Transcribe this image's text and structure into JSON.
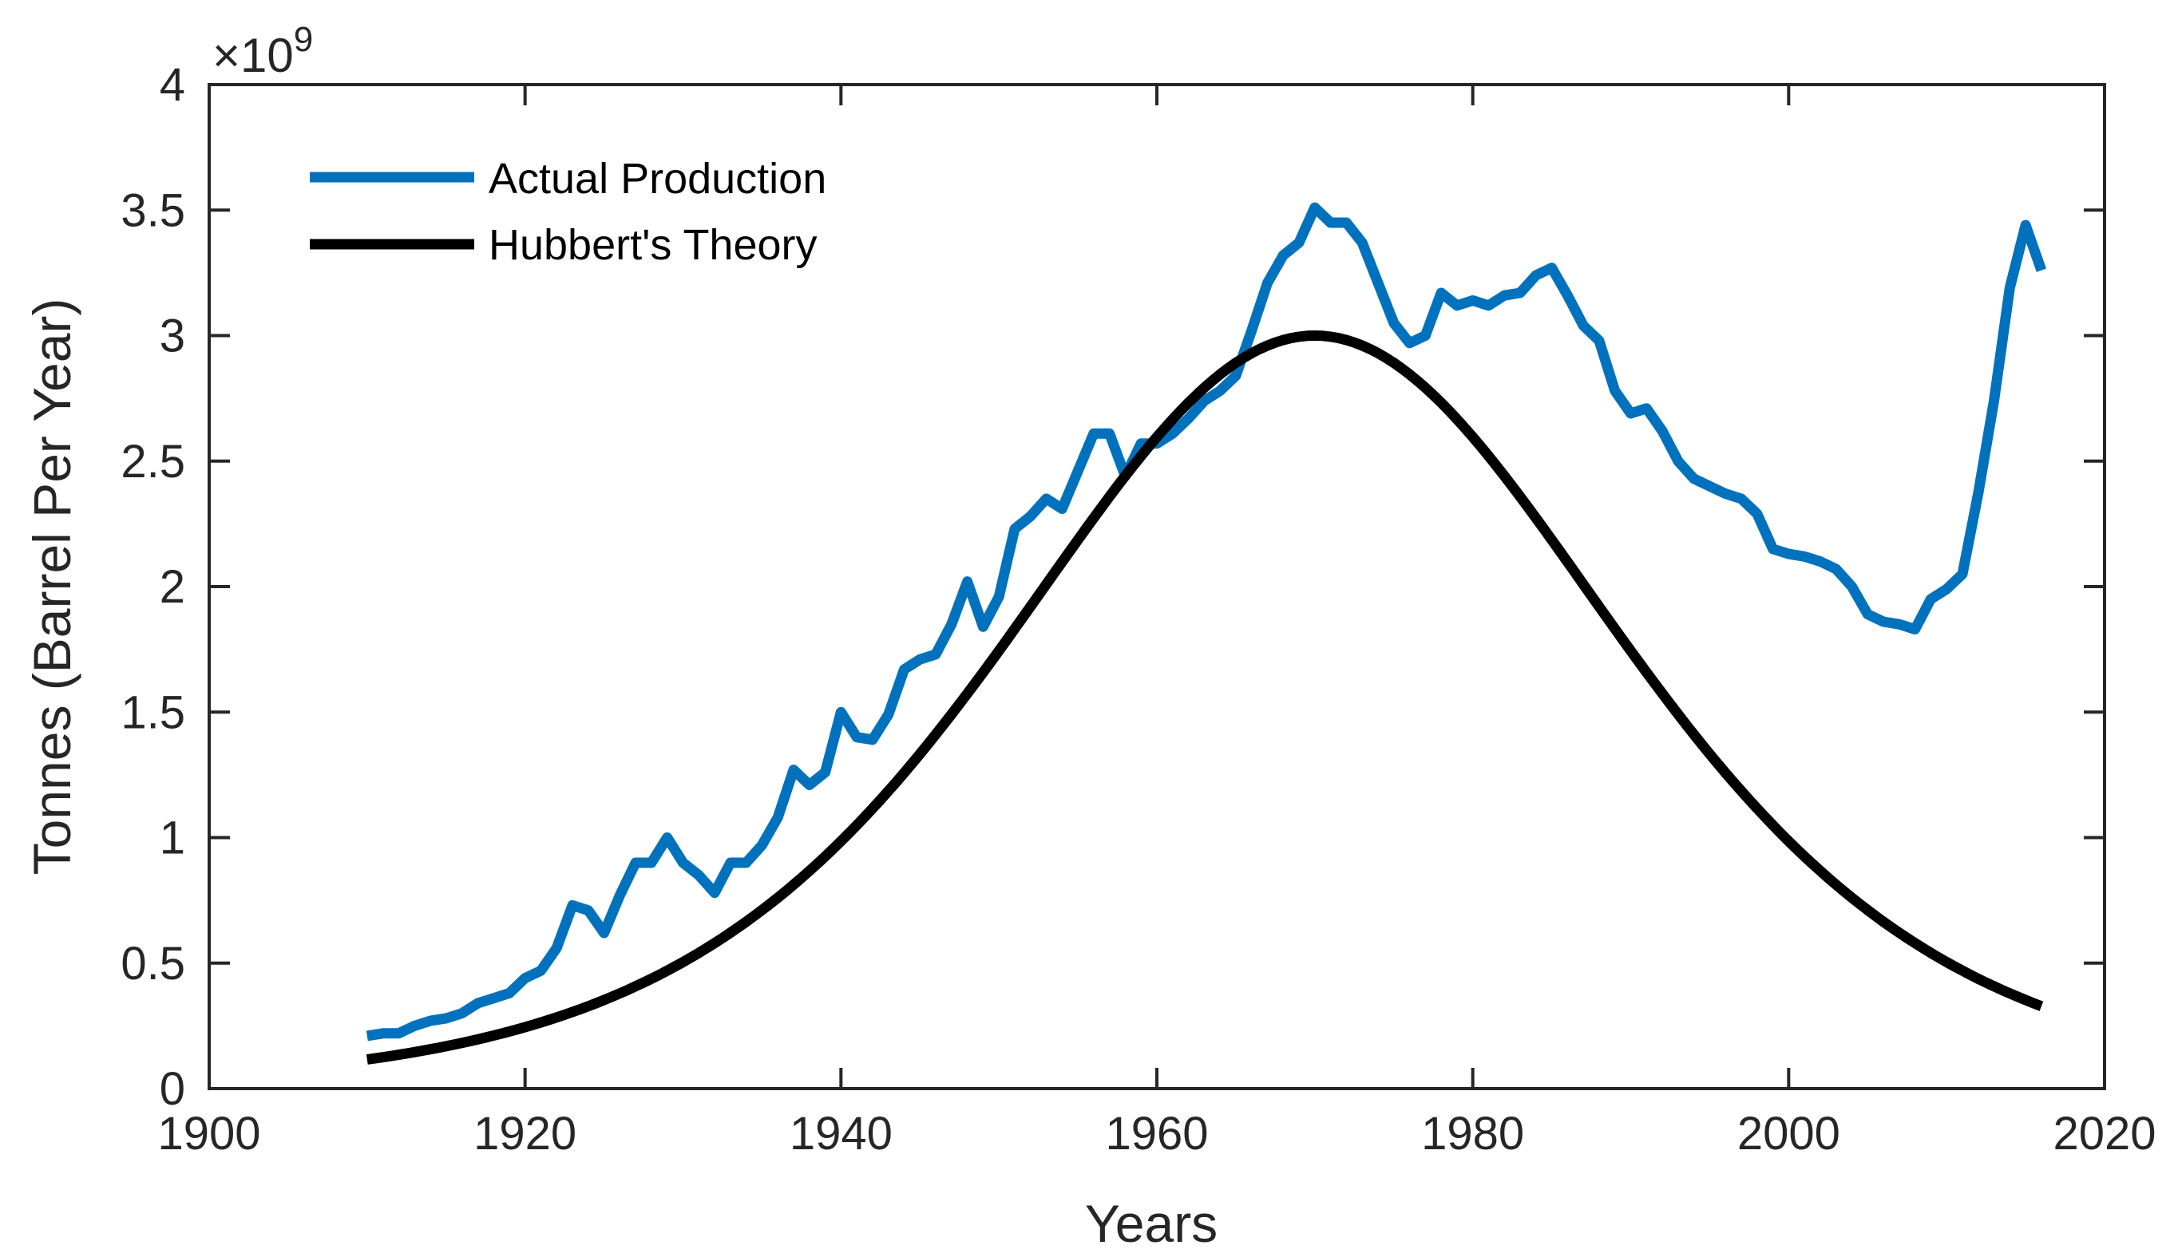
{
  "chart_data": {
    "type": "line",
    "title": "",
    "xlabel": "Years",
    "ylabel": "Tonnes (Barrel Per Year)",
    "xlim": [
      1900,
      2020
    ],
    "ylim": [
      0,
      4
    ],
    "xticks": [
      1900,
      1920,
      1940,
      1960,
      1980,
      2000,
      2020
    ],
    "yticks": [
      0,
      0.5,
      1,
      1.5,
      2,
      2.5,
      3,
      3.5,
      4
    ],
    "ytick_labels": [
      "0",
      "0.5",
      "1",
      "1.5",
      "2",
      "2.5",
      "3",
      "3.5",
      "4"
    ],
    "y_multiplier": {
      "prefix": "×10",
      "exponent": "9"
    },
    "grid": false,
    "legend_position": "top-left",
    "series": [
      {
        "name": "Actual Production",
        "color": "#0072BD",
        "x": [
          1910,
          1911,
          1912,
          1913,
          1914,
          1915,
          1916,
          1917,
          1918,
          1919,
          1920,
          1921,
          1922,
          1923,
          1924,
          1925,
          1926,
          1927,
          1928,
          1929,
          1930,
          1931,
          1932,
          1933,
          1934,
          1935,
          1936,
          1937,
          1938,
          1939,
          1940,
          1941,
          1942,
          1943,
          1944,
          1945,
          1946,
          1947,
          1948,
          1949,
          1950,
          1951,
          1952,
          1953,
          1954,
          1955,
          1956,
          1957,
          1958,
          1959,
          1960,
          1961,
          1962,
          1963,
          1964,
          1965,
          1966,
          1967,
          1968,
          1969,
          1970,
          1971,
          1972,
          1973,
          1974,
          1975,
          1976,
          1977,
          1978,
          1979,
          1980,
          1981,
          1982,
          1983,
          1984,
          1985,
          1986,
          1987,
          1988,
          1989,
          1990,
          1991,
          1992,
          1993,
          1994,
          1995,
          1996,
          1997,
          1998,
          1999,
          2000,
          2001,
          2002,
          2003,
          2004,
          2005,
          2006,
          2007,
          2008,
          2009,
          2010,
          2011,
          2012,
          2013,
          2014,
          2015,
          2016
        ],
        "values": [
          0.21,
          0.22,
          0.22,
          0.25,
          0.27,
          0.28,
          0.3,
          0.34,
          0.36,
          0.38,
          0.44,
          0.47,
          0.56,
          0.73,
          0.71,
          0.62,
          0.77,
          0.9,
          0.9,
          1.0,
          0.9,
          0.85,
          0.78,
          0.9,
          0.9,
          0.97,
          1.08,
          1.27,
          1.21,
          1.26,
          1.5,
          1.4,
          1.39,
          1.49,
          1.67,
          1.71,
          1.73,
          1.85,
          2.02,
          1.84,
          1.96,
          2.23,
          2.28,
          2.35,
          2.31,
          2.46,
          2.61,
          2.61,
          2.44,
          2.57,
          2.57,
          2.61,
          2.67,
          2.74,
          2.78,
          2.84,
          3.02,
          3.21,
          3.32,
          3.37,
          3.51,
          3.45,
          3.45,
          3.37,
          3.21,
          3.05,
          2.97,
          3.0,
          3.17,
          3.12,
          3.14,
          3.12,
          3.16,
          3.17,
          3.24,
          3.27,
          3.16,
          3.04,
          2.98,
          2.78,
          2.69,
          2.71,
          2.62,
          2.5,
          2.43,
          2.4,
          2.37,
          2.35,
          2.29,
          2.15,
          2.13,
          2.12,
          2.1,
          2.07,
          2.0,
          1.89,
          1.86,
          1.85,
          1.83,
          1.95,
          1.99,
          2.05,
          2.37,
          2.74,
          3.19,
          3.44,
          3.26
        ]
      },
      {
        "name": "Hubbert's Theory",
        "color": "#000000",
        "model": {
          "peak_year": 1970,
          "peak_value": 3.0,
          "k": 0.077
        },
        "x": [
          1910,
          1915,
          1920,
          1925,
          1930,
          1935,
          1940,
          1945,
          1950,
          1955,
          1960,
          1965,
          1970,
          1975,
          1980,
          1985,
          1990,
          1995,
          2000,
          2005,
          2010,
          2015,
          2016
        ],
        "values": [
          0.19,
          0.28,
          0.39,
          0.53,
          0.71,
          0.94,
          1.23,
          1.57,
          1.94,
          2.33,
          2.66,
          2.91,
          3.0,
          2.91,
          2.66,
          2.31,
          1.93,
          1.53,
          1.17,
          0.87,
          0.63,
          0.45,
          0.42
        ]
      }
    ]
  }
}
